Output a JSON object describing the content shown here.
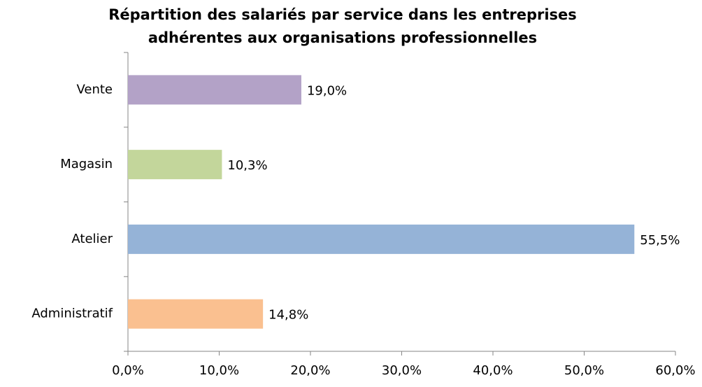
{
  "chart_data": {
    "type": "bar",
    "orientation": "horizontal",
    "title": [
      "Répartition des salariés par service dans les entreprises",
      "adhérentes aux organisations professionnelles"
    ],
    "categories": [
      "Vente",
      "Magasin",
      "Atelier",
      "Administratif"
    ],
    "values": [
      19.0,
      10.3,
      55.5,
      14.8
    ],
    "value_labels": [
      "19,0%",
      "10,3%",
      "55,5%",
      "14,8%"
    ],
    "colors": [
      "#b3a2c7",
      "#c3d69b",
      "#95b3d7",
      "#fac090"
    ],
    "xlim": [
      0,
      60
    ],
    "xticks": [
      {
        "value": 0,
        "label": "0,0%"
      },
      {
        "value": 10,
        "label": "10,0%"
      },
      {
        "value": 20,
        "label": "20,0%"
      },
      {
        "value": 30,
        "label": "30,0%"
      },
      {
        "value": 40,
        "label": "40,0%"
      },
      {
        "value": 50,
        "label": "50,0%"
      },
      {
        "value": 60,
        "label": "60,0%"
      }
    ],
    "grid": false
  }
}
